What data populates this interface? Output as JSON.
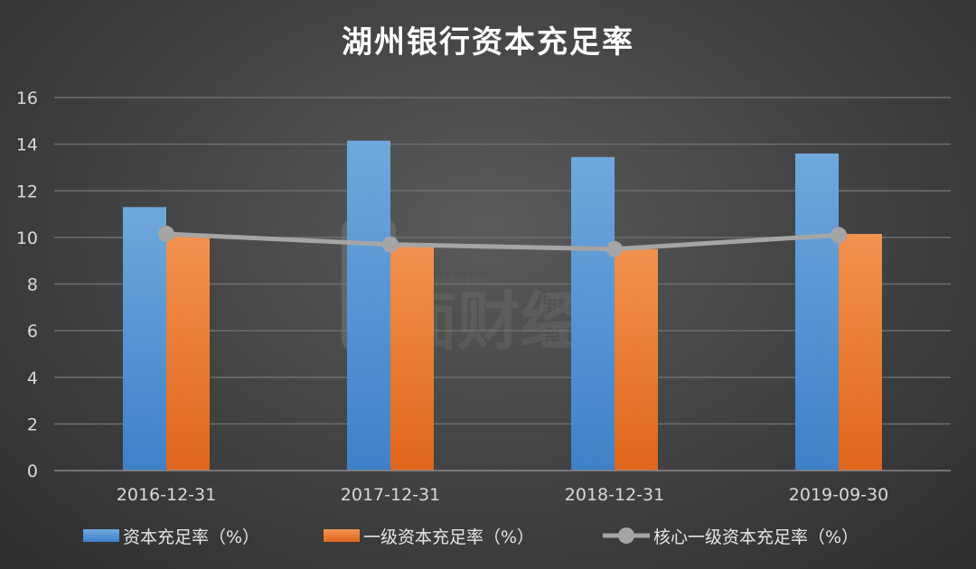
{
  "chart_data": {
    "type": "bar",
    "title": "湖州银行资本充足率",
    "categories": [
      "2016-12-31",
      "2017-12-31",
      "2018-12-31",
      "2019-09-30"
    ],
    "ylim": [
      0,
      16
    ],
    "yticks": [
      0,
      2,
      4,
      6,
      8,
      10,
      12,
      14,
      16
    ],
    "grid": true,
    "legend_position": "bottom",
    "series": [
      {
        "name": "资本充足率（%）",
        "kind": "bar",
        "color": "#5b9bd5",
        "values": [
          11.3,
          14.15,
          13.45,
          13.6
        ]
      },
      {
        "name": "一级资本充足率（%）",
        "kind": "bar",
        "color": "#ed7d31",
        "values": [
          10.1,
          9.7,
          9.5,
          10.15
        ]
      },
      {
        "name": "核心一级资本充足率（%）",
        "kind": "line",
        "color": "#a5a5a5",
        "values": [
          10.15,
          9.7,
          9.5,
          10.1
        ]
      }
    ]
  },
  "watermark": {
    "brand_en": "Bread Finance",
    "line1": "原创作品",
    "line2": "禁止转载",
    "logo_text": "面财经"
  }
}
